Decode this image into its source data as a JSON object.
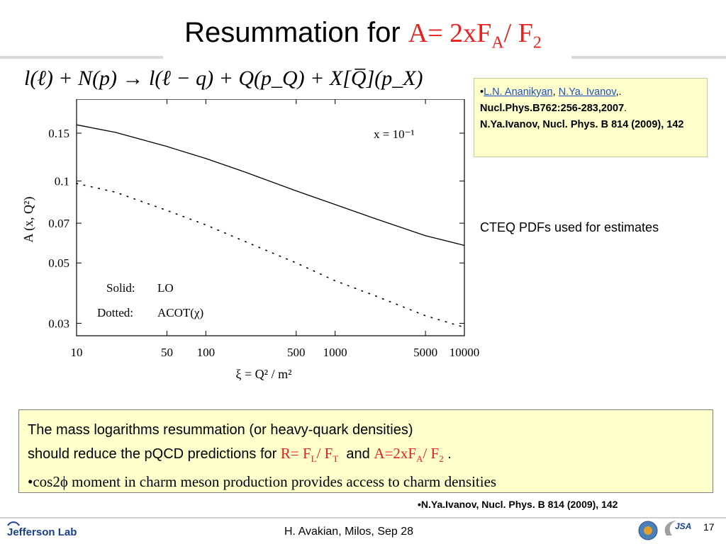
{
  "title": {
    "text": "Resummation for ",
    "eq": {
      "a": "A= 2xF",
      "sub1": "A",
      "b": "/ F",
      "sub2": "2"
    }
  },
  "reaction": "l(ℓ) + N(p) → l(ℓ − q) + Q(p_Q) + X[Q̅](p_X)",
  "references": {
    "bullet": "•",
    "author1": "L.N. Ananikyan",
    "sep1": ", ",
    "author2": "N.Ya. Ivanov",
    "sep2": ",.",
    "journal1": "Nucl.Phys.B762:256-283,2007",
    "dot": ".",
    "line2": "N.Ya.Ivanov, Nucl. Phys. B 814 (2009), 142"
  },
  "cteq_note": "CTEQ PDFs used for estimates",
  "bottom_box": {
    "line1": "The mass logarithms resummation (or heavy-quark densities)",
    "line2_pre": "should  reduce the pQCD predictions for ",
    "r_eq": {
      "a": "R= F",
      "sub1": "L",
      "b": "/ F",
      "sub2": "T"
    },
    "and": "  and ",
    "a_eq": {
      "a": "A=2xF",
      "sub1": "A",
      "b": "/ F",
      "sub2": "2"
    },
    "line2_end": " .",
    "line3": "•cos2ϕ moment in charm meson production provides access to charm densities"
  },
  "ref_bottom": "•N.Ya.Ivanov, Nucl. Phys. B 814 (2009), 142",
  "footer": {
    "logo_text": "Jefferson Lab",
    "presenter": "H. Avakian, Milos,  Sep 28",
    "page": "17",
    "logo_icons": [
      "globe-logo-icon",
      "jsa-logo-icon"
    ]
  },
  "chart_data": {
    "type": "line",
    "xlabel": "ξ = Q² / m²",
    "ylabel": "A (x, Q²)",
    "x_scale": "log",
    "y_scale": "log",
    "xlim": [
      10,
      10000
    ],
    "ylim": [
      0.027,
      0.2
    ],
    "x_ticks": [
      10,
      50,
      100,
      500,
      1000,
      5000,
      10000
    ],
    "x_tick_labels": [
      "10",
      "50",
      "100",
      "500",
      "1000",
      "5000",
      "10000"
    ],
    "y_ticks": [
      0.03,
      0.05,
      0.07,
      0.1,
      0.15
    ],
    "y_tick_labels": [
      "0.03",
      "0.05",
      "0.07",
      "0.1",
      "0.15"
    ],
    "annotation": "x = 10⁻¹",
    "legend": [
      {
        "key": "Solid:",
        "label": "LO"
      },
      {
        "key": "Dotted:",
        "label": "ACOT(χ)"
      }
    ],
    "grid": false,
    "series": [
      {
        "style": "solid",
        "x": [
          10,
          20,
          50,
          100,
          200,
          500,
          1000,
          2000,
          5000,
          10000
        ],
        "y": [
          0.161,
          0.151,
          0.134,
          0.121,
          0.108,
          0.092,
          0.082,
          0.073,
          0.063,
          0.058
        ]
      },
      {
        "style": "dotted",
        "x": [
          10,
          20,
          50,
          100,
          200,
          500,
          1000,
          2000,
          5000,
          10000
        ],
        "y": [
          0.098,
          0.091,
          0.078,
          0.069,
          0.06,
          0.05,
          0.043,
          0.038,
          0.032,
          0.029
        ]
      }
    ]
  }
}
